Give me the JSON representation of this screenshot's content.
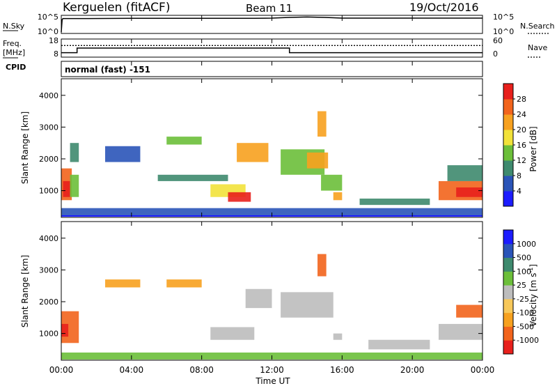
{
  "header": {
    "station": "Kerguelen (fitACF)",
    "beam": "Beam 11",
    "date": "19/Oct/2016"
  },
  "colors": {
    "power_scale": [
      "#1c1cff",
      "#2a54b8",
      "#3e8a6e",
      "#6cbf3a",
      "#f2e23a",
      "#f7a11f",
      "#f2641c",
      "#e8201c"
    ],
    "velocity_scale": [
      "#e8201c",
      "#f2641c",
      "#f7a11f",
      "#f7c85a",
      "#bdbdbd",
      "#bdbdbd",
      "#6cbf3a",
      "#3e8a6e",
      "#2a54b8",
      "#1c1cff"
    ],
    "ground_scatter": "#bdbdbd"
  },
  "params_panel": {
    "nsky_label": "N.Sky",
    "nsky_ticks": [
      "10^5",
      "10^0"
    ],
    "nsearch_label": "N.Search",
    "nsearch_ticks": [
      "10^5",
      "10^0"
    ],
    "freq_label": "Freq.",
    "freq_unit": "[MHz]",
    "freq_ticks": [
      "18",
      "8"
    ],
    "nave_label": "Nave",
    "nave_ticks": [
      "60",
      "0"
    ],
    "cpid_label": "CPID",
    "cpid_text": "normal (fast) -151"
  },
  "axes": {
    "x_ticks": [
      "00:00",
      "04:00",
      "08:00",
      "12:00",
      "16:00",
      "20:00",
      "00:00"
    ],
    "x_label": "Time UT",
    "y_ticks": [
      "4000",
      "3000",
      "2000",
      "1000"
    ],
    "y_label": "Slant Range [km]"
  },
  "colorbars": {
    "power": {
      "label": "Power [dB]",
      "ticks": [
        "28",
        "24",
        "20",
        "16",
        "12",
        "8",
        "4"
      ]
    },
    "velocity": {
      "label": "Velocity [m s",
      "label_sup": "-1",
      "label_end": "]",
      "ticks": [
        "1000",
        "500",
        "100",
        "25",
        "-25",
        "-100",
        "-500",
        "-1000"
      ]
    }
  },
  "chart_data": [
    {
      "type": "line",
      "name": "N.Sky / N.Search",
      "x_range": [
        0,
        24
      ],
      "ylim": [
        0,
        5
      ],
      "x": [
        0,
        0.05,
        0.1,
        1,
        4,
        8,
        11,
        12,
        13,
        14,
        15,
        16,
        20,
        24
      ],
      "values": [
        0,
        4.3,
        4.6,
        4.6,
        4.7,
        4.7,
        4.7,
        4.75,
        5.0,
        5.15,
        5.0,
        4.75,
        4.75,
        4.75
      ]
    },
    {
      "type": "line",
      "name": "Freq / Nave",
      "x_range": [
        0,
        24
      ],
      "freq_ylim": [
        8,
        18
      ],
      "freq_x": [
        0,
        0.9,
        0.9,
        13,
        13,
        24
      ],
      "freq_values": [
        10,
        10,
        13,
        13,
        10,
        10
      ],
      "nave_ylim": [
        0,
        60
      ],
      "nave_value": 40
    },
    {
      "type": "heatmap",
      "name": "Power [dB]",
      "x_range": [
        0,
        24
      ],
      "ylim": [
        180,
        4500
      ],
      "cells": [
        {
          "t0": 0.0,
          "t1": 0.6,
          "r0": 700,
          "r1": 1700,
          "value": 25
        },
        {
          "t0": 0.1,
          "t1": 0.5,
          "r0": 800,
          "r1": 1300,
          "value": 29
        },
        {
          "t0": 0.5,
          "t1": 1.0,
          "r0": 800,
          "r1": 1500,
          "value": 14
        },
        {
          "t0": 0.5,
          "t1": 1.0,
          "r0": 1900,
          "r1": 2500,
          "value": 8
        },
        {
          "t0": 2.5,
          "t1": 4.5,
          "r0": 1900,
          "r1": 2400,
          "value": 6
        },
        {
          "t0": 6.0,
          "t1": 8.0,
          "r0": 2450,
          "r1": 2700,
          "value": 12
        },
        {
          "t0": 5.5,
          "t1": 9.5,
          "r0": 1300,
          "r1": 1500,
          "value": 8
        },
        {
          "t0": 8.5,
          "t1": 10.5,
          "r0": 800,
          "r1": 1200,
          "value": 18
        },
        {
          "t0": 9.5,
          "t1": 10.8,
          "r0": 650,
          "r1": 950,
          "value": 28
        },
        {
          "t0": 10.0,
          "t1": 11.8,
          "r0": 1900,
          "r1": 2500,
          "value": 20
        },
        {
          "t0": 12.5,
          "t1": 15.0,
          "r0": 1500,
          "r1": 2300,
          "value": 14
        },
        {
          "t0": 14.0,
          "t1": 15.2,
          "r0": 1700,
          "r1": 2200,
          "value": 20
        },
        {
          "t0": 14.6,
          "t1": 15.1,
          "r0": 2700,
          "r1": 3500,
          "value": 22
        },
        {
          "t0": 14.8,
          "t1": 16.0,
          "r0": 1000,
          "r1": 1500,
          "value": 12
        },
        {
          "t0": 15.5,
          "t1": 16.0,
          "r0": 700,
          "r1": 950,
          "value": 22
        },
        {
          "t0": 17.0,
          "t1": 21.0,
          "r0": 550,
          "r1": 750,
          "value": 8
        },
        {
          "t0": 21.5,
          "t1": 24.0,
          "r0": 700,
          "r1": 1300,
          "value": 24
        },
        {
          "t0": 22.5,
          "t1": 24.0,
          "r0": 800,
          "r1": 1100,
          "value": 29
        },
        {
          "t0": 22.0,
          "t1": 24.0,
          "r0": 1300,
          "r1": 1800,
          "value": 8
        },
        {
          "t0": 0.0,
          "t1": 24.0,
          "r0": 180,
          "r1": 450,
          "value": 6
        }
      ]
    },
    {
      "type": "heatmap",
      "name": "Velocity [m s-1]",
      "x_range": [
        0,
        24
      ],
      "ylim": [
        180,
        4500
      ],
      "ground_scatter": "gray",
      "cells": [
        {
          "t0": 0.0,
          "t1": 1.0,
          "r0": 700,
          "r1": 1700,
          "value": -200
        },
        {
          "t0": 0.0,
          "t1": 0.4,
          "r0": 900,
          "r1": 1300,
          "value": -600
        },
        {
          "t0": 2.5,
          "t1": 4.5,
          "r0": 2450,
          "r1": 2700,
          "value": -60
        },
        {
          "t0": 6.0,
          "t1": 8.0,
          "r0": 2450,
          "r1": 2700,
          "value": -60
        },
        {
          "t0": 8.5,
          "t1": 11.0,
          "r0": 800,
          "r1": 1200,
          "value": 0
        },
        {
          "t0": 10.5,
          "t1": 12.0,
          "r0": 1800,
          "r1": 2400,
          "value": 0
        },
        {
          "t0": 12.5,
          "t1": 15.5,
          "r0": 1500,
          "r1": 2300,
          "value": 0
        },
        {
          "t0": 14.6,
          "t1": 15.1,
          "r0": 2800,
          "r1": 3500,
          "value": -300
        },
        {
          "t0": 15.5,
          "t1": 16.0,
          "r0": 800,
          "r1": 1000,
          "value": 0
        },
        {
          "t0": 17.5,
          "t1": 21.0,
          "r0": 500,
          "r1": 800,
          "value": 0
        },
        {
          "t0": 21.5,
          "t1": 24.0,
          "r0": 800,
          "r1": 1300,
          "value": 0
        },
        {
          "t0": 22.5,
          "t1": 24.0,
          "r0": 1500,
          "r1": 1900,
          "value": -150
        },
        {
          "t0": 0.0,
          "t1": 24.0,
          "r0": 180,
          "r1": 400,
          "value": 50
        }
      ]
    }
  ]
}
